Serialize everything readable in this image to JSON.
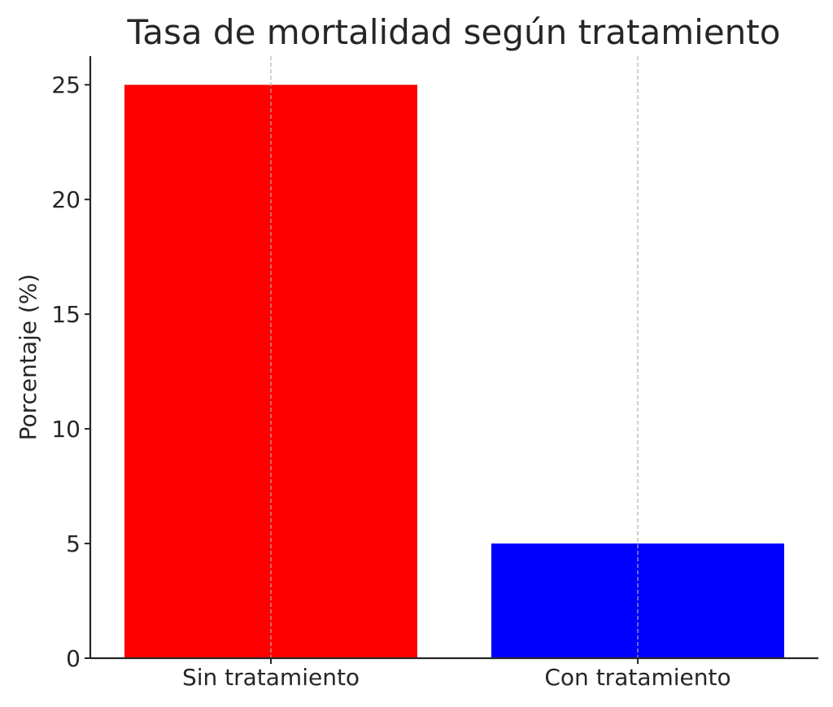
{
  "chart_data": {
    "type": "bar",
    "title": "Tasa de mortalidad según tratamiento",
    "xlabel": "",
    "ylabel": "Porcentaje (%)",
    "categories": [
      "Sin tratamiento",
      "Con tratamiento"
    ],
    "values": [
      25,
      5
    ],
    "colors": [
      "#ff0000",
      "#0000ff"
    ],
    "ylim": [
      0,
      26.25
    ],
    "yticks": [
      0,
      5,
      10,
      15,
      20,
      25
    ],
    "grid": "x-axis dashed vertical",
    "legend": "none"
  }
}
